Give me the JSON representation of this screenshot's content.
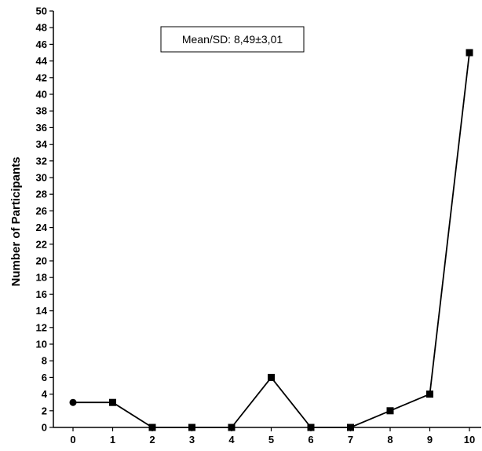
{
  "chart_data": {
    "type": "line",
    "title": "",
    "xlabel": "",
    "ylabel": "Number of Participants",
    "x": [
      0,
      1,
      2,
      3,
      4,
      5,
      6,
      7,
      8,
      9,
      10
    ],
    "series": [
      {
        "values": [
          3,
          3,
          0,
          0,
          0,
          6,
          0,
          0,
          2,
          4,
          45
        ]
      }
    ],
    "marker_shapes": [
      "circle",
      "square",
      "square",
      "square",
      "square",
      "square",
      "square",
      "square",
      "square",
      "square",
      "square"
    ],
    "xlim": [
      0,
      10
    ],
    "ylim": [
      0,
      50
    ],
    "y_tick_step": 2,
    "x_tick_labels": [
      "0",
      "1",
      "2",
      "3",
      "4",
      "5",
      "6",
      "7",
      "8",
      "9",
      "10"
    ],
    "grid": false,
    "annotation": "Mean/SD: 8,49±3,01"
  }
}
